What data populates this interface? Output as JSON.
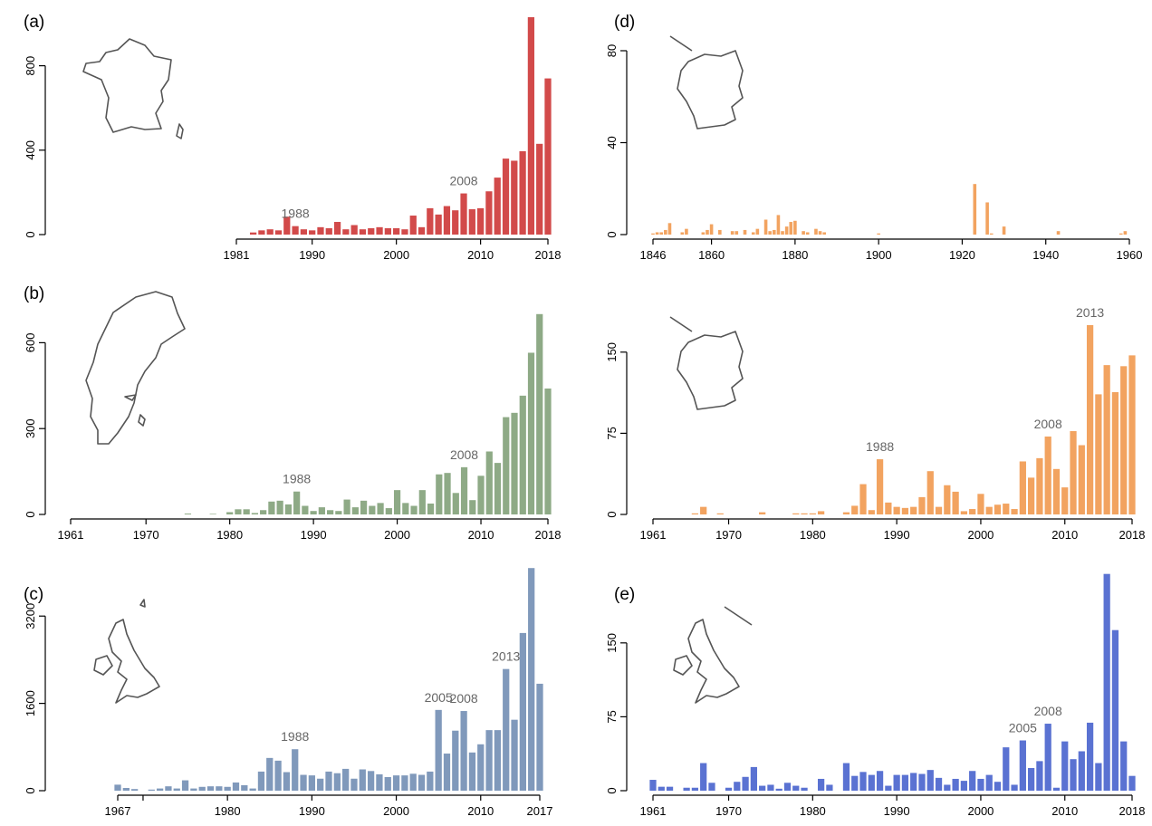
{
  "colors": {
    "a": "#d24a4a",
    "b": "#8eaa86",
    "c": "#8099bb",
    "d": "#f2a360",
    "e": "#5a72d2"
  },
  "chart_data": [
    {
      "id": "a",
      "type": "bar",
      "panel_label": "(a)",
      "map": "france-icon",
      "x_range": [
        1981,
        2018
      ],
      "ylim": [
        0,
        1000
      ],
      "y_ticks": [
        0,
        400,
        800
      ],
      "x_ticks": [
        1981,
        1990,
        2000,
        2010,
        2018
      ],
      "annotations": [
        {
          "year": 1988,
          "label": "1988"
        },
        {
          "year": 2008,
          "label": "2008"
        }
      ],
      "x": [
        1983,
        1984,
        1985,
        1986,
        1987,
        1988,
        1989,
        1990,
        1991,
        1992,
        1993,
        1994,
        1995,
        1996,
        1997,
        1998,
        1999,
        2000,
        2001,
        2002,
        2003,
        2004,
        2005,
        2006,
        2007,
        2008,
        2009,
        2010,
        2011,
        2012,
        2013,
        2014,
        2015,
        2016,
        2017,
        2018
      ],
      "values": [
        10,
        20,
        25,
        20,
        85,
        40,
        25,
        20,
        35,
        30,
        60,
        25,
        45,
        25,
        30,
        35,
        30,
        30,
        25,
        90,
        35,
        125,
        95,
        135,
        115,
        195,
        120,
        125,
        205,
        270,
        360,
        350,
        395,
        1030,
        430,
        740
      ]
    },
    {
      "id": "b",
      "type": "bar",
      "panel_label": "(b)",
      "map": "sweden-icon",
      "x_range": [
        1961,
        2018
      ],
      "ylim": [
        0,
        750
      ],
      "y_ticks": [
        0,
        300,
        600
      ],
      "x_ticks": [
        1961,
        1970,
        1980,
        1990,
        2000,
        2010,
        2018
      ],
      "annotations": [
        {
          "year": 1988,
          "label": "1988"
        },
        {
          "year": 2008,
          "label": "2008"
        }
      ],
      "x": [
        1975,
        1978,
        1980,
        1981,
        1982,
        1983,
        1984,
        1985,
        1986,
        1987,
        1988,
        1989,
        1990,
        1991,
        1992,
        1993,
        1994,
        1995,
        1996,
        1997,
        1998,
        1999,
        2000,
        2001,
        2002,
        2003,
        2004,
        2005,
        2006,
        2007,
        2008,
        2009,
        2010,
        2011,
        2012,
        2013,
        2014,
        2015,
        2016,
        2017,
        2018
      ],
      "values": [
        3,
        2,
        8,
        18,
        18,
        5,
        15,
        45,
        48,
        35,
        80,
        30,
        12,
        25,
        15,
        12,
        52,
        25,
        48,
        30,
        40,
        22,
        85,
        40,
        30,
        85,
        38,
        140,
        145,
        75,
        165,
        50,
        135,
        220,
        180,
        340,
        355,
        415,
        565,
        700,
        440
      ]
    },
    {
      "id": "c",
      "type": "bar",
      "panel_label": "(c)",
      "map": "uk-icon",
      "x_range": [
        1967,
        2017
      ],
      "ylim": [
        0,
        4100
      ],
      "y_ticks": [
        0,
        1600,
        3200
      ],
      "x_ticks": [
        1967,
        1980,
        1990,
        2000,
        2010,
        2017
      ],
      "extra_ticks": [
        1970
      ],
      "annotations": [
        {
          "year": 1988,
          "label": "1988"
        },
        {
          "year": 2005,
          "label": "2005"
        },
        {
          "year": 2008,
          "label": "2008"
        },
        {
          "year": 2013,
          "label": "2013"
        }
      ],
      "x": [
        1967,
        1968,
        1969,
        1971,
        1972,
        1973,
        1974,
        1975,
        1976,
        1977,
        1978,
        1979,
        1980,
        1981,
        1982,
        1983,
        1984,
        1985,
        1986,
        1987,
        1988,
        1989,
        1990,
        1991,
        1992,
        1993,
        1994,
        1995,
        1996,
        1997,
        1998,
        1999,
        2000,
        2001,
        2002,
        2003,
        2004,
        2005,
        2006,
        2007,
        2008,
        2009,
        2010,
        2011,
        2012,
        2013,
        2014,
        2015,
        2016,
        2017
      ],
      "values": [
        110,
        50,
        30,
        20,
        40,
        80,
        40,
        190,
        40,
        70,
        80,
        80,
        70,
        150,
        100,
        40,
        350,
        600,
        550,
        340,
        760,
        290,
        280,
        220,
        350,
        320,
        400,
        220,
        390,
        360,
        300,
        250,
        280,
        280,
        310,
        290,
        350,
        1480,
        680,
        1100,
        1460,
        700,
        850,
        1110,
        1110,
        2230,
        1300,
        2890,
        4080,
        1960
      ]
    },
    {
      "id": "d",
      "type": "bar",
      "panel_label": "(d)",
      "map": "germany-icon",
      "x_range": [
        1846,
        1960
      ],
      "ylim": [
        0,
        80
      ],
      "y_ticks": [
        0,
        40,
        80
      ],
      "x_ticks": [
        1846,
        1860,
        1880,
        1900,
        1920,
        1940,
        1960
      ],
      "annotations": [],
      "x": [
        1846,
        1847,
        1848,
        1849,
        1850,
        1853,
        1854,
        1858,
        1859,
        1860,
        1862,
        1865,
        1866,
        1868,
        1870,
        1871,
        1873,
        1874,
        1875,
        1876,
        1877,
        1878,
        1879,
        1880,
        1882,
        1883,
        1885,
        1886,
        1887,
        1900,
        1923,
        1926,
        1927,
        1930,
        1943,
        1958,
        1959
      ],
      "values": [
        0.5,
        1,
        1,
        2,
        5,
        1,
        2.5,
        1,
        2,
        4.5,
        2,
        1.5,
        1.5,
        2,
        1,
        2.5,
        6.5,
        1.5,
        2,
        8.5,
        1.5,
        3.5,
        5.5,
        6,
        1.5,
        1,
        2.5,
        1.5,
        1,
        0.5,
        22,
        14,
        0.5,
        3.5,
        1.5,
        0.5,
        1.5
      ]
    },
    {
      "id": "d2",
      "type": "bar",
      "panel_label": "",
      "map": "germany-icon",
      "x_range": [
        1961,
        2018
      ],
      "ylim": [
        0,
        190
      ],
      "y_ticks": [
        0,
        75,
        150
      ],
      "x_ticks": [
        1961,
        1970,
        1980,
        1990,
        2000,
        2010,
        2018
      ],
      "annotations": [
        {
          "year": 1988,
          "label": "1988"
        },
        {
          "year": 2008,
          "label": "2008"
        },
        {
          "year": 2013,
          "label": "2013"
        }
      ],
      "x": [
        1966,
        1967,
        1969,
        1974,
        1978,
        1979,
        1980,
        1981,
        1984,
        1985,
        1986,
        1987,
        1988,
        1989,
        1990,
        1991,
        1992,
        1993,
        1994,
        1995,
        1996,
        1997,
        1998,
        1999,
        2000,
        2001,
        2002,
        2003,
        2004,
        2005,
        2006,
        2007,
        2008,
        2009,
        2010,
        2011,
        2012,
        2013,
        2014,
        2015,
        2016,
        2017,
        2018
      ],
      "values": [
        1,
        7,
        1,
        2,
        1,
        1,
        1,
        3,
        2,
        8,
        28,
        4,
        51,
        11,
        7,
        6,
        7,
        16,
        40,
        7,
        27,
        21,
        3,
        5,
        19,
        7,
        9,
        10,
        5,
        49,
        34,
        52,
        72,
        42,
        25,
        77,
        64,
        175,
        111,
        138,
        113,
        137,
        147
      ]
    },
    {
      "id": "e",
      "type": "bar",
      "panel_label": "(e)",
      "map": "uk-icon",
      "x_range": [
        1961,
        2018
      ],
      "ylim": [
        0,
        205
      ],
      "y_ticks": [
        0,
        75,
        150
      ],
      "x_ticks": [
        1961,
        1970,
        1980,
        1990,
        2000,
        2010,
        2018
      ],
      "annotations": [
        {
          "year": 2005,
          "label": "2005"
        },
        {
          "year": 2008,
          "label": "2008"
        }
      ],
      "x": [
        1961,
        1962,
        1963,
        1965,
        1966,
        1967,
        1968,
        1970,
        1971,
        1972,
        1973,
        1974,
        1975,
        1976,
        1977,
        1978,
        1979,
        1981,
        1982,
        1984,
        1985,
        1986,
        1987,
        1988,
        1989,
        1990,
        1991,
        1992,
        1993,
        1994,
        1995,
        1996,
        1997,
        1998,
        1999,
        2000,
        2001,
        2002,
        2003,
        2004,
        2005,
        2006,
        2007,
        2008,
        2009,
        2010,
        2011,
        2012,
        2013,
        2014,
        2015,
        2016,
        2017,
        2018
      ],
      "values": [
        11,
        4,
        4,
        3,
        3,
        28,
        8,
        3,
        9,
        14,
        24,
        5,
        6,
        2,
        8,
        5,
        3,
        12,
        6,
        28,
        15,
        19,
        16,
        20,
        5,
        16,
        16,
        18,
        17,
        21,
        13,
        6,
        12,
        10,
        20,
        12,
        16,
        9,
        44,
        6,
        51,
        23,
        30,
        68,
        3,
        50,
        32,
        40,
        69,
        28,
        220,
        163,
        50,
        15
      ]
    }
  ]
}
